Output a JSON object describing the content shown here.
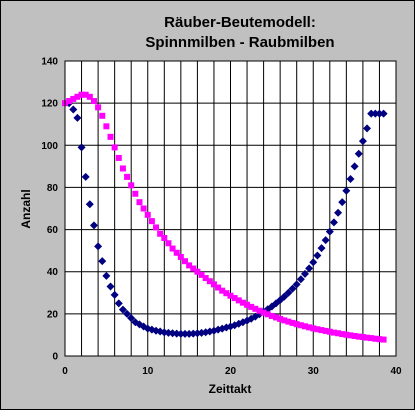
{
  "chart_data": {
    "type": "scatter",
    "title_lines": [
      "Räuber-Beutemodell:",
      "Spinnmilben - Raubmilben"
    ],
    "xlabel": "Zeittakt",
    "ylabel": "Anzahl",
    "xlim": [
      0,
      40
    ],
    "ylim": [
      0,
      140
    ],
    "xticks": [
      0,
      10,
      20,
      30,
      40
    ],
    "yticks": [
      0,
      20,
      40,
      60,
      80,
      100,
      120,
      140
    ],
    "grid": true,
    "legend": "none",
    "colors": {
      "plot_bg": "#ffffff",
      "frame_bg": "#c0c0c0",
      "grid": "#000000",
      "series1": "#000080",
      "series2": "#ff00ff"
    },
    "series": [
      {
        "marker": "diamond",
        "color": "#000080",
        "x": [
          0.5,
          1,
          1.5,
          2,
          2.5,
          3,
          3.5,
          4,
          4.5,
          5,
          5.5,
          6,
          6.5,
          7,
          7.5,
          8,
          8.5,
          9,
          9.5,
          10,
          10.5,
          11,
          11.5,
          12,
          12.5,
          13,
          13.5,
          14,
          14.5,
          15,
          15.5,
          16,
          16.5,
          17,
          17.5,
          18,
          18.5,
          19,
          19.5,
          20,
          20.5,
          21,
          21.5,
          22,
          22.5,
          23,
          23.5,
          24,
          24.5,
          25,
          25.5,
          26,
          26.5,
          27,
          27.5,
          28,
          28.5,
          29,
          29.5,
          30,
          30.5,
          31,
          31.5,
          32,
          32.5,
          33,
          33.5,
          34,
          34.5,
          35,
          35.5,
          36,
          36.5,
          37,
          37.5,
          38,
          38.5
        ],
        "y": [
          120,
          117,
          113,
          99,
          85,
          72,
          62,
          52,
          45,
          38,
          33,
          29,
          25,
          22,
          20,
          18,
          16,
          15,
          14,
          13,
          12.5,
          12,
          11.6,
          11.2,
          11,
          10.8,
          10.6,
          10.5,
          10.5,
          10.5,
          10.6,
          10.8,
          11,
          11.3,
          11.6,
          12,
          12.5,
          13,
          13.5,
          14,
          14.6,
          15.3,
          16,
          16.8,
          17.7,
          18.7,
          19.8,
          21,
          22.2,
          23.5,
          25,
          26.5,
          28.2,
          30,
          32,
          34,
          36.4,
          39,
          41.6,
          44.5,
          47.7,
          51.2,
          55,
          59,
          63.4,
          68,
          73,
          78.4,
          84,
          90,
          96,
          102,
          108,
          115,
          115,
          115,
          115
        ]
      },
      {
        "marker": "square",
        "color": "#ff00ff",
        "x": [
          0,
          0.5,
          1,
          1.5,
          2,
          2.5,
          3,
          3.5,
          4,
          4.5,
          5,
          5.5,
          6,
          6.5,
          7,
          7.5,
          8,
          8.5,
          9,
          9.5,
          10,
          10.5,
          11,
          11.5,
          12,
          12.5,
          13,
          13.5,
          14,
          14.5,
          15,
          15.5,
          16,
          16.5,
          17,
          17.5,
          18,
          18.5,
          19,
          19.5,
          20,
          20.5,
          21,
          21.5,
          22,
          22.5,
          23,
          23.5,
          24,
          24.5,
          25,
          25.5,
          26,
          26.5,
          27,
          27.5,
          28,
          28.5,
          29,
          29.5,
          30,
          30.5,
          31,
          31.5,
          32,
          32.5,
          33,
          33.5,
          34,
          34.5,
          35,
          35.5,
          36,
          36.5,
          37,
          37.5,
          38,
          38.5
        ],
        "y": [
          120,
          121,
          122,
          123,
          124,
          124,
          123,
          121,
          118,
          114,
          109,
          104,
          99,
          94,
          89,
          85,
          81,
          77,
          73,
          70,
          67,
          64,
          61,
          58,
          56,
          53.5,
          51,
          49,
          47,
          45,
          43,
          41.5,
          40,
          38.5,
          37,
          35.5,
          34,
          32.5,
          31,
          29.8,
          28.6,
          27.5,
          26.4,
          25.3,
          24.3,
          23.3,
          22.4,
          21.5,
          20.6,
          19.8,
          19,
          18.3,
          17.6,
          16.9,
          16.3,
          15.7,
          15.1,
          14.6,
          14.1,
          13.6,
          13.1,
          12.7,
          12.3,
          11.9,
          11.5,
          11.1,
          10.8,
          10.4,
          10.1,
          9.8,
          9.5,
          9.2,
          9,
          8.7,
          8.5,
          8.2,
          8,
          7.8
        ]
      }
    ]
  }
}
